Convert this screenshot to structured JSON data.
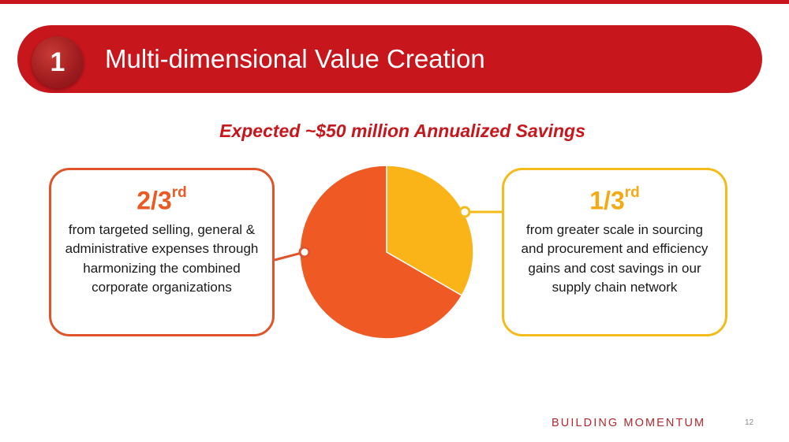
{
  "header": {
    "section_number": "1",
    "title": "Multi-dimensional Value Creation"
  },
  "subtitle": "Expected ~$50 million Annualized Savings",
  "left_callout": {
    "fraction": "2/3",
    "suffix": "rd",
    "description": "from targeted selling, general & administrative expenses through harmonizing the combined corporate organizations"
  },
  "right_callout": {
    "fraction": "1/3",
    "suffix": "rd",
    "description": "from greater scale in sourcing and procurement and efficiency gains and cost savings in our supply chain network"
  },
  "chart_data": {
    "type": "pie",
    "title": "Expected ~$50 million Annualized Savings",
    "slices": [
      {
        "label": "1/3rd",
        "name": "sourcing, procurement & supply chain",
        "value": 33.33,
        "color": "#fbb418"
      },
      {
        "label": "2/3rd",
        "name": "SG&A harmonization",
        "value": 66.67,
        "color": "#ef5a24"
      }
    ]
  },
  "footer": {
    "brand": "BUILDING MOMENTUM",
    "page": "12"
  },
  "colors": {
    "brand_red": "#c8161d",
    "orange": "#ef5a24",
    "yellow": "#fbb418"
  }
}
